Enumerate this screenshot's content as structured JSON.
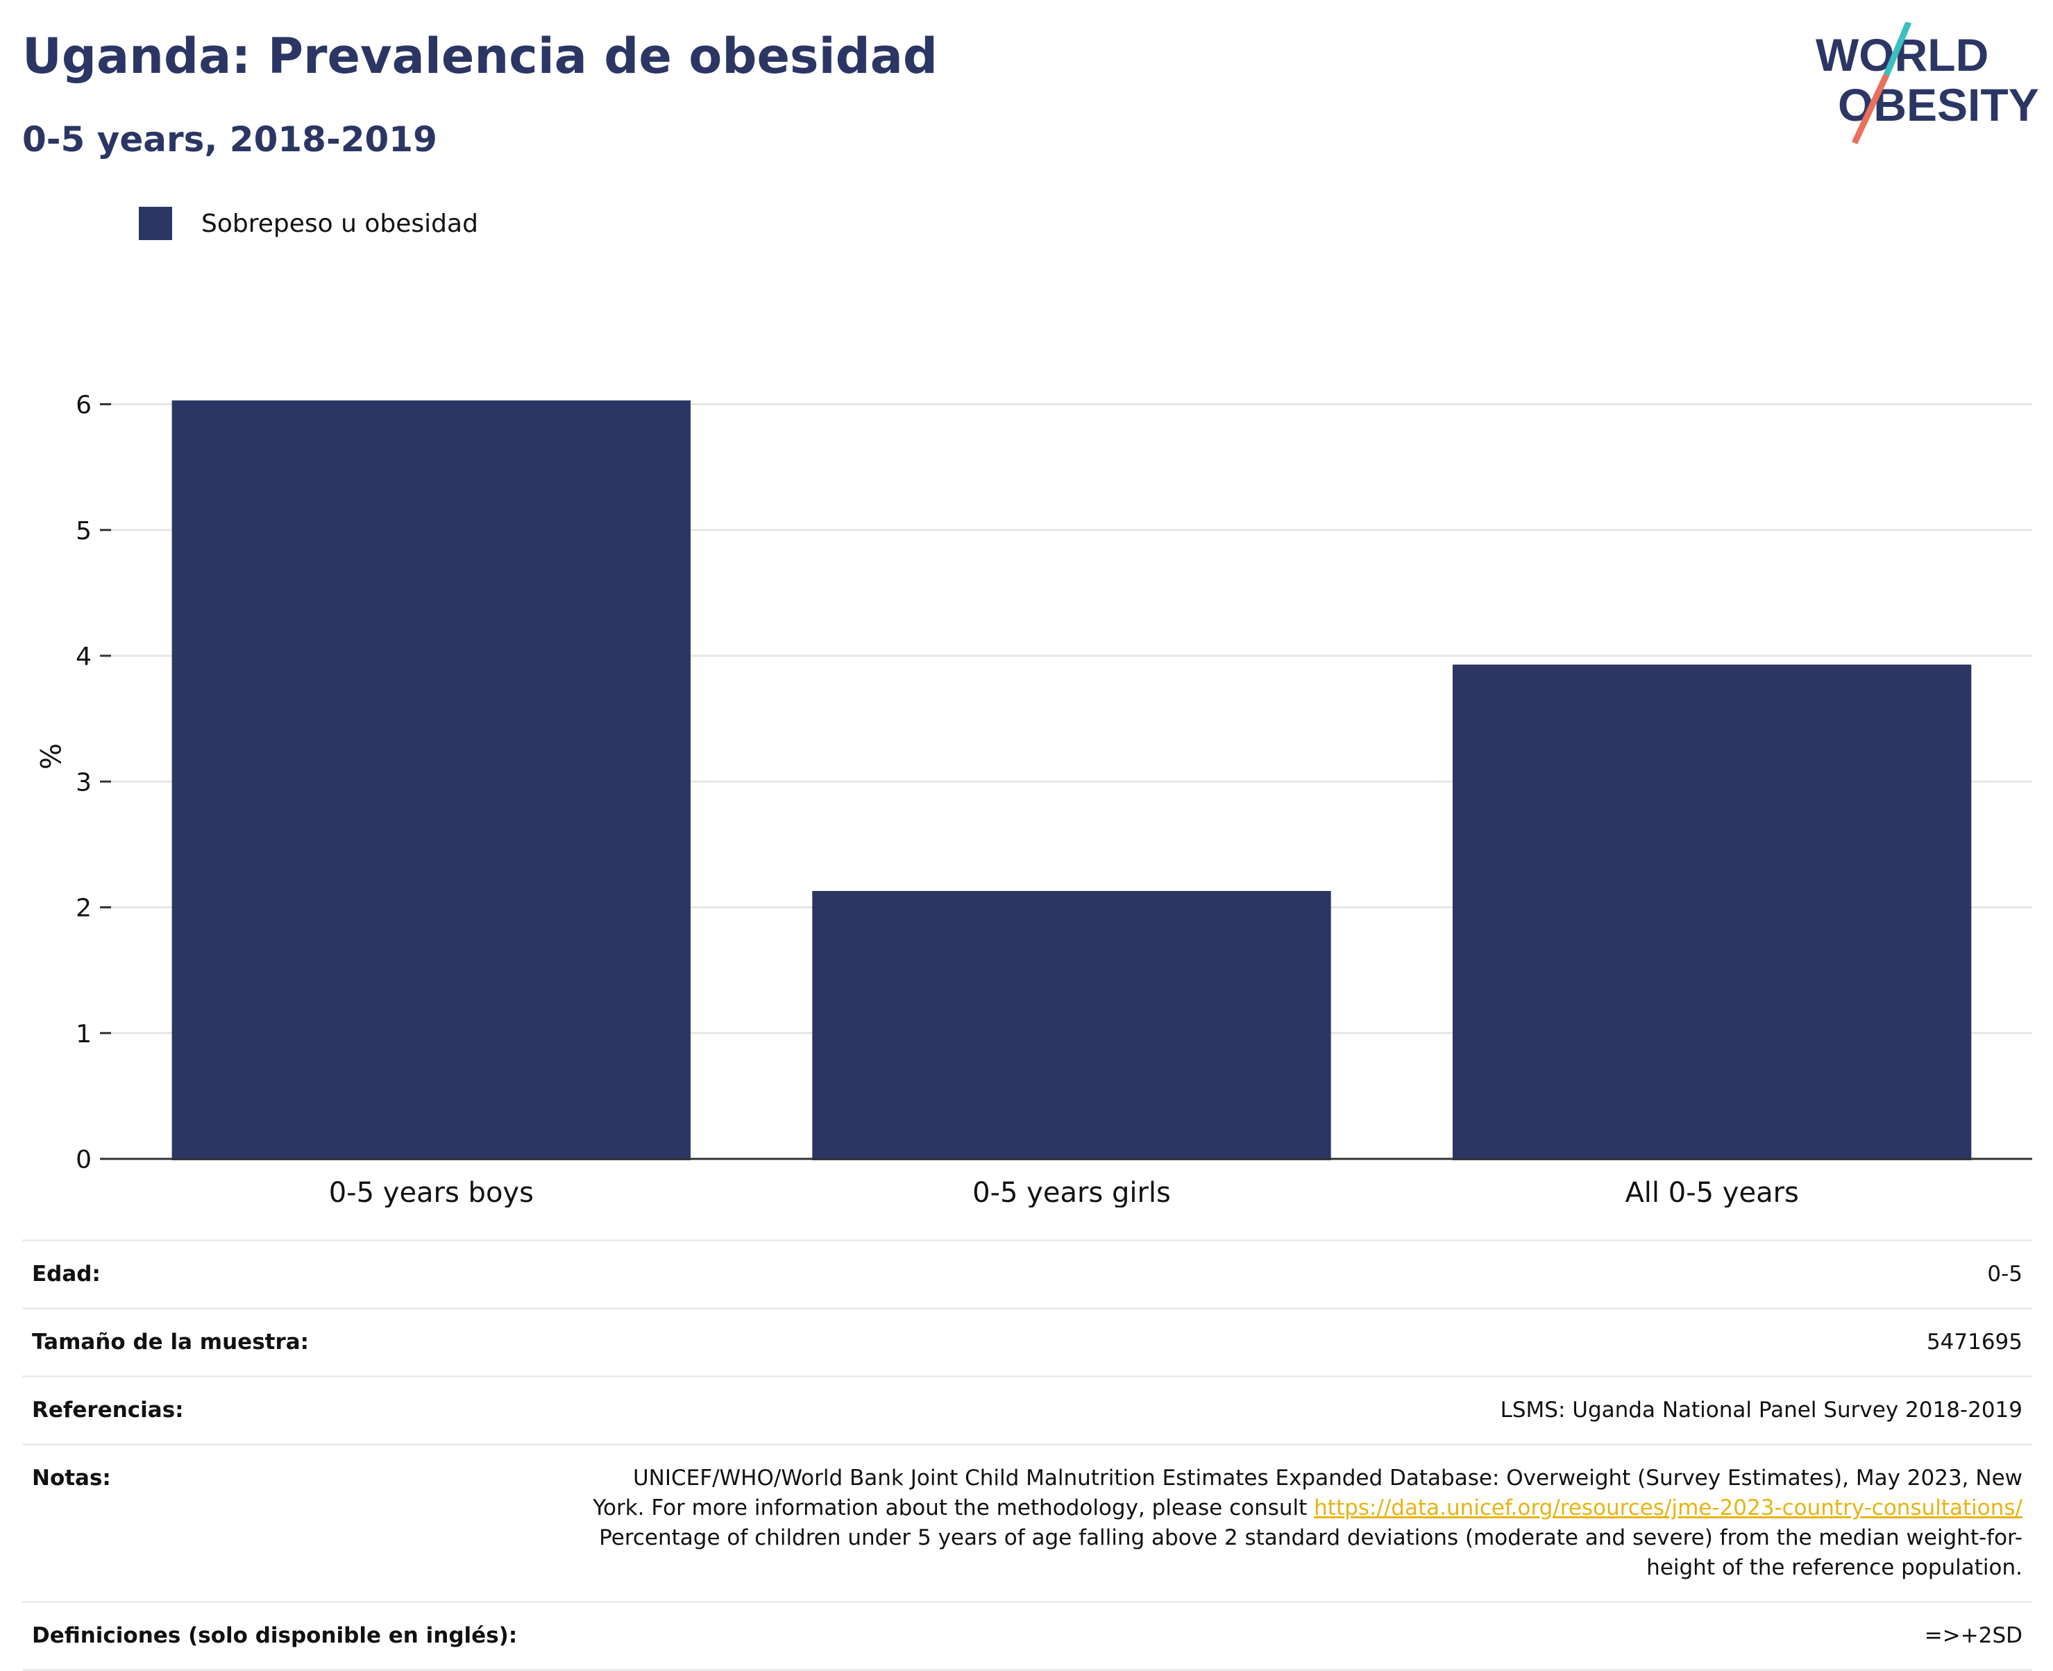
{
  "title": "Uganda: Prevalencia de obesidad",
  "subtitle": "0-5 years, 2018-2019",
  "logo": {
    "line1": "WORLD",
    "line2": "OBESITY"
  },
  "legend": {
    "label": "Sobrepeso u obesidad",
    "color": "#2b3664"
  },
  "chart_data": {
    "type": "bar",
    "categories": [
      "0-5 years boys",
      "0-5 years girls",
      "All 0-5 years"
    ],
    "series": [
      {
        "name": "Sobrepeso u obesidad",
        "values": [
          6.03,
          2.13,
          3.93
        ],
        "color": "#2b3664"
      }
    ],
    "ylabel": "%",
    "xlabel": "",
    "ylim": [
      0,
      6.4
    ],
    "yticks": [
      0,
      1,
      2,
      3,
      4,
      5,
      6
    ],
    "grid": true,
    "legend_position": "top-left"
  },
  "info": {
    "age": {
      "label": "Edad:",
      "value": "0-5"
    },
    "sample": {
      "label": "Tamaño de la muestra:",
      "value": "5471695"
    },
    "refs": {
      "label": "Referencias:",
      "value": "LSMS: Uganda National Panel Survey 2018-2019"
    },
    "notes": {
      "label": "Notas:",
      "text1": "UNICEF/WHO/World Bank Joint Child Malnutrition Estimates Expanded Database: Overweight (Survey Estimates), May 2023, New York. For more information about the methodology, please consult ",
      "link": "https://data.unicef.org/resources/jme-2023-country-consultations/",
      "text2": "Percentage of children under 5 years of age falling above 2 standard deviations (moderate and severe) from the median weight-for-height of the reference population."
    },
    "defs": {
      "label": "Definiciones (solo disponible en inglés):",
      "value": "=>+2SD"
    }
  },
  "colors": {
    "brand": "#2b3664",
    "logo_teal": "#3bbfbf",
    "logo_coral": "#e8705c",
    "link": "#e8b311"
  }
}
